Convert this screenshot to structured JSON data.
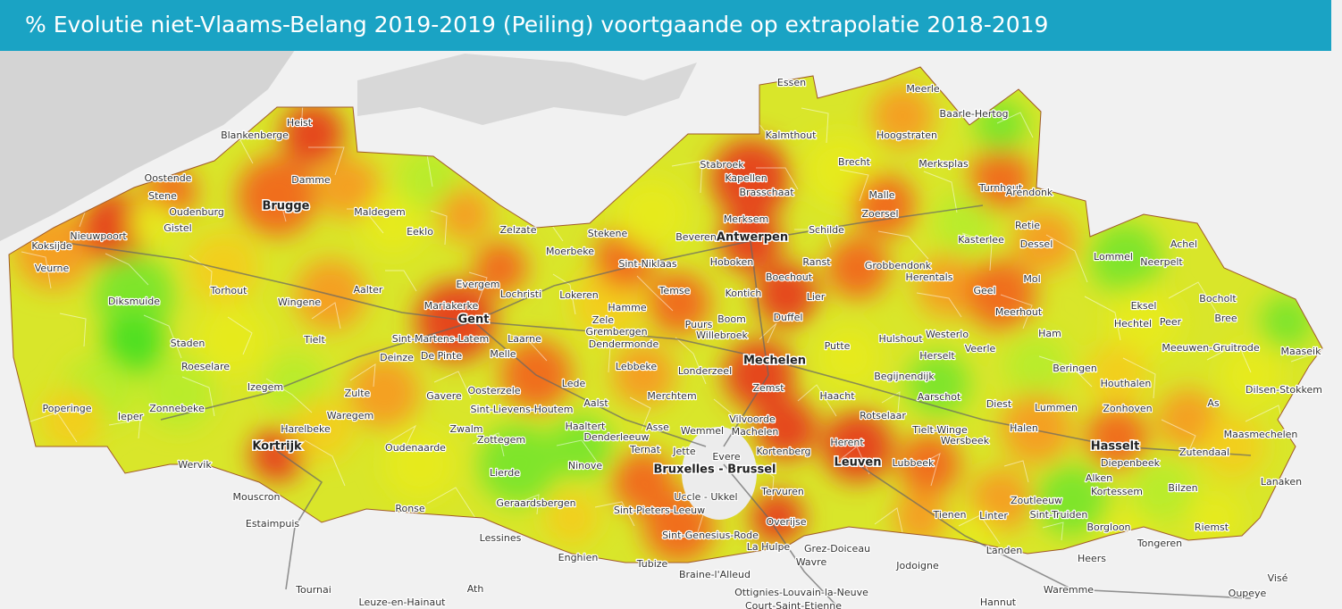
{
  "header": {
    "title": "% Evolutie niet-Vlaams-Belang 2019-2019 (Peiling) voortgaande op extrapolatie 2018-2019"
  },
  "places": [
    "Essen",
    "Meerle",
    "Baarle-Hertog",
    "Heist",
    "Blankenberge",
    "Kalmthout",
    "Hoogstraten",
    "Brecht",
    "Merksplas",
    "Stabroek",
    "Kapellen",
    "Oostende",
    "Damme",
    "Brasschaat",
    "Turnhout",
    "Arendonk",
    "Stene",
    "Malle",
    "Oudenburg",
    "Maldegem",
    "Zoersel",
    "Merksem",
    "Retie",
    "Gistel",
    "Eeklo",
    "Zelzate",
    "Stekene",
    "Beveren",
    "Schilde",
    "Kasterlee",
    "Dessel",
    "Achel",
    "Nieuwpoort",
    "Koksijde",
    "Veurne",
    "Moerbeke",
    "Sint-Niklaas",
    "Hoboken",
    "Ranst",
    "Grobbendonk",
    "Herentals",
    "Lommel",
    "Neerpelt",
    "Mol",
    "Torhout",
    "Evergem",
    "Lochristi",
    "Lokeren",
    "Temse",
    "Boechout",
    "Kontich",
    "Lier",
    "Geel",
    "Bocholt",
    "Aalter",
    "Diksmuide",
    "Wingene",
    "Mariakerke",
    "Hamme",
    "Zele",
    "Boom",
    "Duffel",
    "Eksel",
    "Meerhout",
    "Peer",
    "Bree",
    "Puurs",
    "Grembergen",
    "Willebroek",
    "Hechtel",
    "Sint-Martens-Latem",
    "Laarne",
    "Tielt",
    "Staden",
    "Dendermonde",
    "Putte",
    "Hulshout",
    "Westerlo",
    "Ham",
    "Meeuwen-Gruitrode",
    "Deinze",
    "De Pinte",
    "Melle",
    "Herselt",
    "Veerle",
    "Roeselare",
    "Lebbeke",
    "Beringen",
    "Maaseik",
    "Londerzeel",
    "Begijnendijk",
    "Izegem",
    "Lede",
    "Zemst",
    "Houthalen",
    "Dilsen-Stokkem",
    "Zulte",
    "Oosterzele",
    "Poperinge",
    "Zonnebeke",
    "Gavere",
    "Merchtem",
    "Haacht",
    "Aarschot",
    "Diest",
    "Lummen",
    "Zonhoven",
    "As",
    "Ieper",
    "Sint-Lievens-Houtem",
    "Aalst",
    "Rotselaar",
    "Waregem",
    "Vilvoorde",
    "Tielt-Winge",
    "Halen",
    "Maasmechelen",
    "Harelbeke",
    "Zwalm",
    "Haaltert",
    "Asse",
    "Wemmel",
    "Machelen",
    "Wersbeek",
    "Zottegem",
    "Denderleeuw",
    "Kortenberg",
    "Herent",
    "Zutendaal",
    "Oudenaarde",
    "Ternat",
    "Evere",
    "Jette",
    "Lubbeek",
    "Diepenbeek",
    "Wervik",
    "Ninove",
    "Lierde",
    "Alken",
    "Lanaken",
    "Kortessem",
    "Bilzen",
    "Mouscron",
    "Tervuren",
    "Uccle - Ukkel",
    "Geraardsbergen",
    "Zoutleeuw",
    "Sint-Truiden",
    "Linter",
    "Tienen",
    "Riemst",
    "Sint-Pieters-Leeuw",
    "Ronse",
    "Overijse",
    "Estaimpuis",
    "Borgloon",
    "Sint-Genesius-Rode",
    "La Hulpe",
    "Lessines",
    "Tongeren",
    "Grez-Doiceau",
    "Landen",
    "Enghien",
    "Tubize",
    "Wavre",
    "Heers",
    "Jodoigne",
    "Visé",
    "Braine-l'Alleud",
    "Tournai",
    "Ath",
    "Waremme",
    "Oupeye",
    "Ottignies-Louvain-la-Neuve",
    "Leuze-en-Hainaut",
    "Court-Saint-Etienne",
    "Hannut"
  ],
  "cities": [
    "Brugge",
    "Antwerpen",
    "Gent",
    "Mechelen",
    "Kortrijk",
    "Bruxelles - Brussel",
    "Leuven",
    "Hasselt"
  ]
}
